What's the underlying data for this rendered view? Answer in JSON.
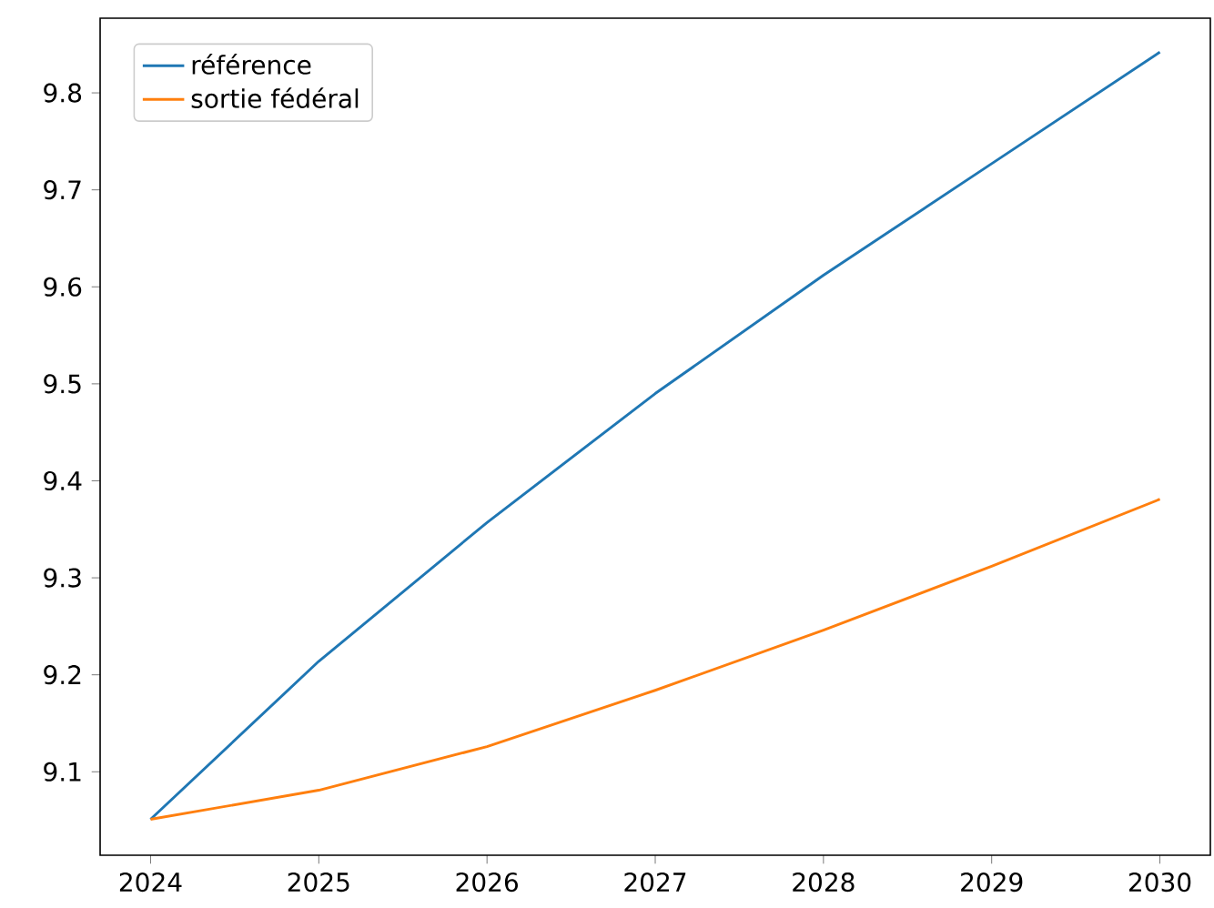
{
  "chart_data": {
    "type": "line",
    "x": [
      2024,
      2025,
      2026,
      2027,
      2028,
      2029,
      2030
    ],
    "series": [
      {
        "name": "référence",
        "color": "#1f77b4",
        "values": [
          9.051,
          9.214,
          9.357,
          9.49,
          9.612,
          9.727,
          9.842
        ]
      },
      {
        "name": "sortie fédéral",
        "color": "#ff7f0e",
        "values": [
          9.051,
          9.081,
          9.126,
          9.184,
          9.246,
          9.312,
          9.381
        ]
      }
    ],
    "xlim": [
      2023.7,
      2030.3
    ],
    "ylim": [
      9.014,
      9.877
    ],
    "xticks": [
      2024,
      2025,
      2026,
      2027,
      2028,
      2029,
      2030
    ],
    "yticks": [
      9.1,
      9.2,
      9.3,
      9.4,
      9.5,
      9.6,
      9.7,
      9.8
    ],
    "legend": "top left",
    "grid": false,
    "marker": "none",
    "line_style": "solid"
  }
}
